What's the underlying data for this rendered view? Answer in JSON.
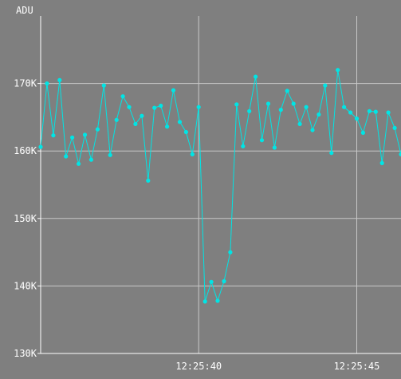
{
  "chart_data": {
    "type": "line",
    "ylabel": "ADU",
    "y_ticks": [
      "130K",
      "140K",
      "150K",
      "160K",
      "170K"
    ],
    "y_tick_values": [
      130000,
      140000,
      150000,
      160000,
      170000
    ],
    "x_ticks": [
      "12:25:40",
      "12:25:45"
    ],
    "x_tick_values": [
      "12:25:40",
      "12:25:45"
    ],
    "x_range": [
      "12:25:35.0",
      "12:25:46.4"
    ],
    "ylim": [
      130000,
      180000
    ],
    "grid": true,
    "colors": {
      "background": "#7f7f7f",
      "grid": "#c8c8c8",
      "axis": "#ffffff",
      "line": "#00e5e5",
      "text": "#ffffff"
    },
    "series": [
      {
        "x": [
          "12:25:35.0",
          "12:25:35.2",
          "12:25:35.4",
          "12:25:35.6",
          "12:25:35.8",
          "12:25:36.0",
          "12:25:36.2",
          "12:25:36.4",
          "12:25:36.6",
          "12:25:36.8",
          "12:25:37.0",
          "12:25:37.2",
          "12:25:37.4",
          "12:25:37.6",
          "12:25:37.8",
          "12:25:38.0",
          "12:25:38.2",
          "12:25:38.4",
          "12:25:38.6",
          "12:25:38.8",
          "12:25:39.0",
          "12:25:39.2",
          "12:25:39.4",
          "12:25:39.6",
          "12:25:39.8",
          "12:25:40.0",
          "12:25:40.2",
          "12:25:40.4",
          "12:25:40.6",
          "12:25:40.8",
          "12:25:41.0",
          "12:25:41.2",
          "12:25:41.4",
          "12:25:41.6",
          "12:25:41.8",
          "12:25:42.0",
          "12:25:42.2",
          "12:25:42.4",
          "12:25:42.6",
          "12:25:42.8",
          "12:25:43.0",
          "12:25:43.2",
          "12:25:43.4",
          "12:25:43.6",
          "12:25:43.8",
          "12:25:44.0",
          "12:25:44.2",
          "12:25:44.4",
          "12:25:44.6",
          "12:25:44.8",
          "12:25:45.0",
          "12:25:45.2",
          "12:25:45.4",
          "12:25:45.6",
          "12:25:45.8",
          "12:25:46.0",
          "12:25:46.2",
          "12:25:46.4"
        ],
        "values": [
          160600,
          170000,
          162300,
          170500,
          159200,
          162000,
          158100,
          162400,
          158700,
          163200,
          169700,
          159400,
          164600,
          168100,
          166500,
          164000,
          165200,
          155600,
          166400,
          166700,
          163600,
          169000,
          164300,
          162800,
          159500,
          166500,
          137700,
          140600,
          137800,
          140700,
          145000,
          166900,
          160700,
          165900,
          171000,
          161600,
          167000,
          160500,
          166100,
          168900,
          167000,
          164000,
          166500,
          163100,
          165400,
          169700,
          159700,
          172000,
          166500,
          165700,
          164800,
          162700,
          165900,
          165800,
          158200,
          165700,
          163400,
          159500
        ]
      }
    ]
  }
}
